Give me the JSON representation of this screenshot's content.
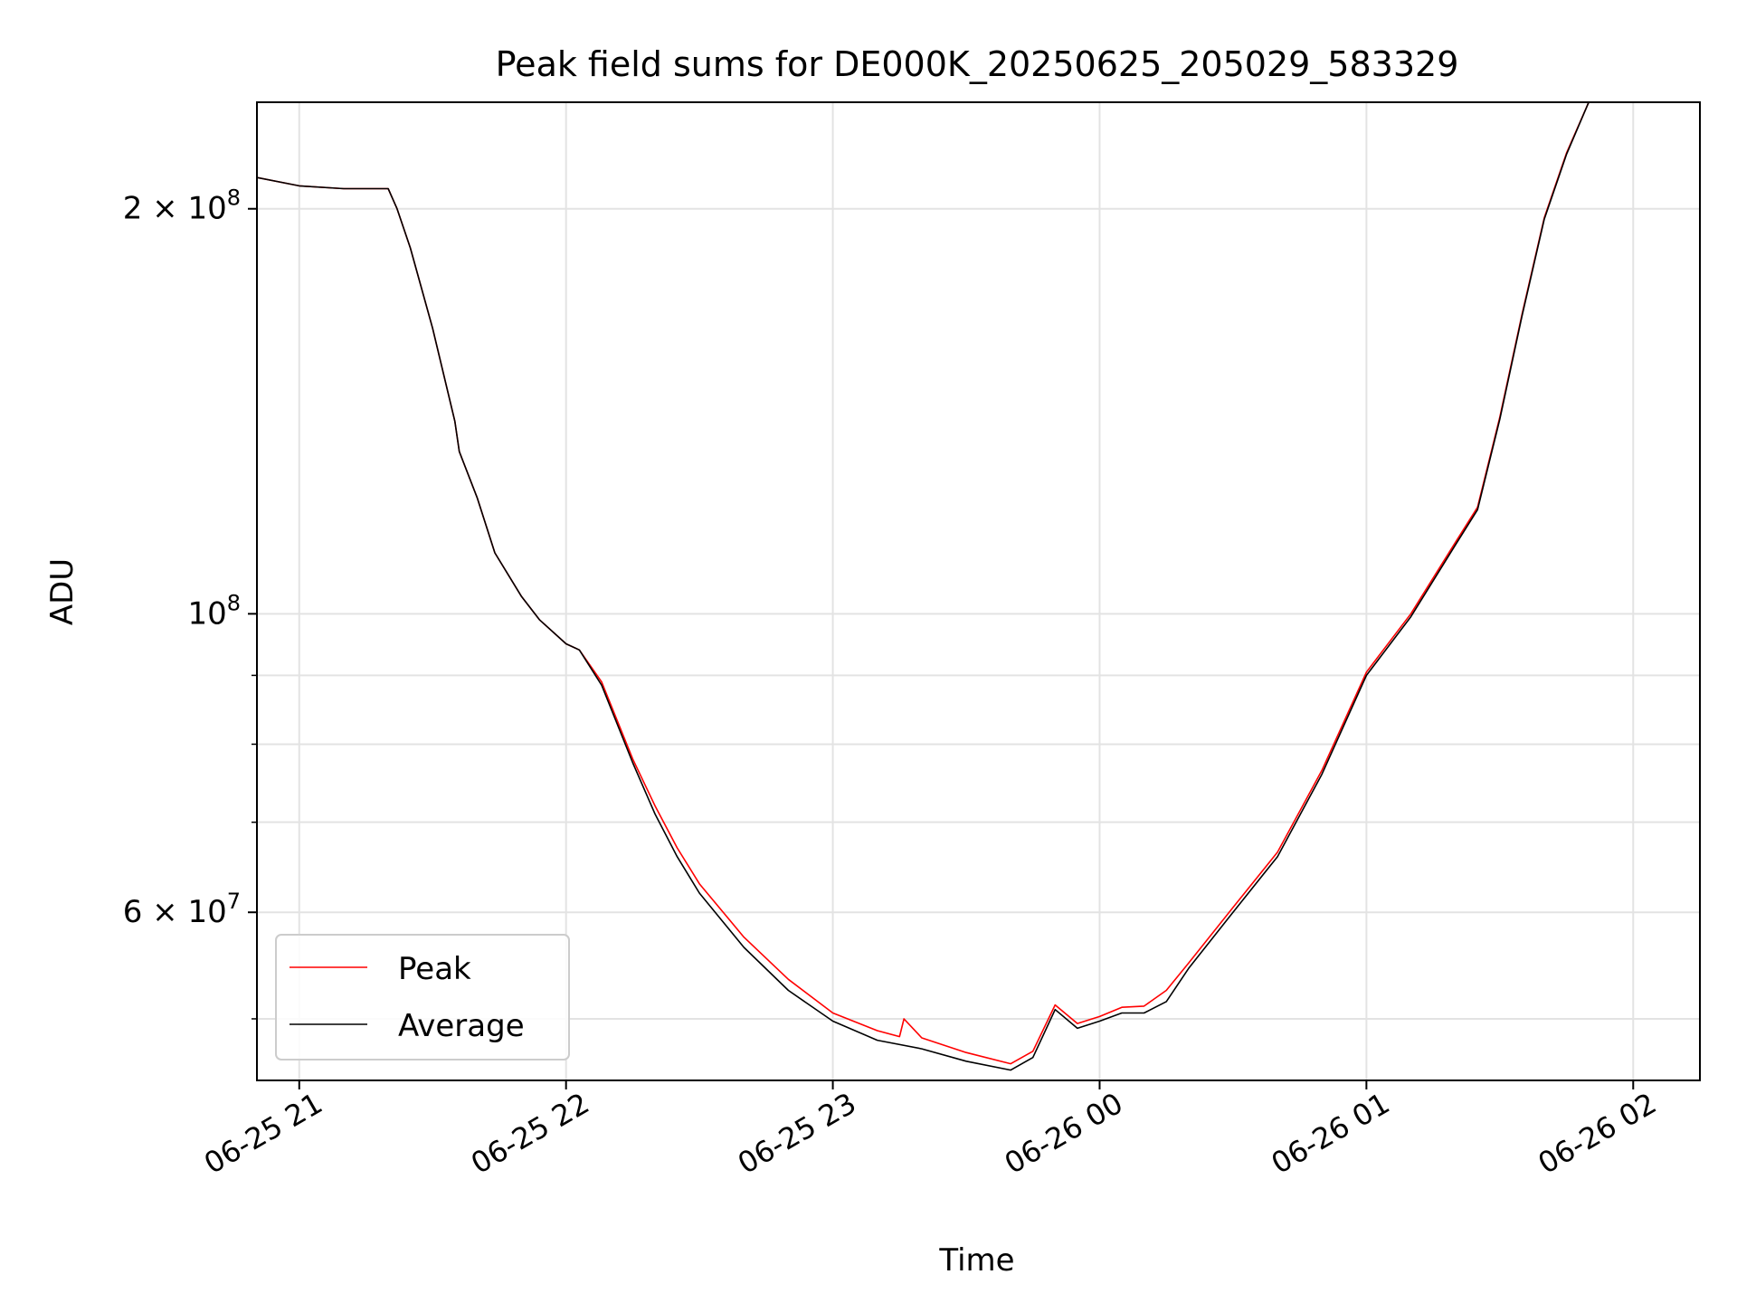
{
  "chart_data": {
    "type": "line",
    "title": "Peak field sums for DE000K_20250625_205029_583329",
    "xlabel": "Time",
    "ylabel": "ADU",
    "x_unit": "datetime",
    "xlim": [
      "2025-06-25 20:50:29",
      "2025-06-26 02:15:00"
    ],
    "ylim": [
      45000000,
      240000000
    ],
    "y_scale": "log",
    "grid": true,
    "legend_position": "lower-left",
    "x_ticks": [
      {
        "value": "2025-06-25 21:00",
        "label": "06-25 21"
      },
      {
        "value": "2025-06-25 22:00",
        "label": "06-25 22"
      },
      {
        "value": "2025-06-25 23:00",
        "label": "06-25 23"
      },
      {
        "value": "2025-06-26 00:00",
        "label": "06-26 00"
      },
      {
        "value": "2025-06-26 01:00",
        "label": "06-26 01"
      },
      {
        "value": "2025-06-26 02:00",
        "label": "06-26 02"
      }
    ],
    "y_ticks": [
      {
        "value": 200000000,
        "base": "2",
        "exp": "8"
      },
      {
        "value": 100000000,
        "base": "",
        "exp": "8"
      },
      {
        "value": 60000000,
        "base": "6",
        "exp": "7"
      }
    ],
    "y_minor_ticks": [
      50000000,
      70000000,
      80000000,
      90000000
    ],
    "series": [
      {
        "name": "Peak",
        "color": "#ff0000",
        "x": [
          "2025-06-25 20:50:29",
          "2025-06-25 21:00",
          "2025-06-25 21:10",
          "2025-06-25 21:20",
          "2025-06-25 21:22",
          "2025-06-25 21:25",
          "2025-06-25 21:30",
          "2025-06-25 21:35",
          "2025-06-25 21:36",
          "2025-06-25 21:40",
          "2025-06-25 21:44",
          "2025-06-25 21:50",
          "2025-06-25 21:54",
          "2025-06-25 22:00",
          "2025-06-25 22:03",
          "2025-06-25 22:08",
          "2025-06-25 22:15",
          "2025-06-25 22:20",
          "2025-06-25 22:25",
          "2025-06-25 22:30",
          "2025-06-25 22:40",
          "2025-06-25 22:50",
          "2025-06-25 23:00",
          "2025-06-25 23:10",
          "2025-06-25 23:15",
          "2025-06-25 23:16",
          "2025-06-25 23:20",
          "2025-06-25 23:30",
          "2025-06-25 23:40",
          "2025-06-25 23:45",
          "2025-06-25 23:50",
          "2025-06-25 23:55",
          "2025-06-26 00:00",
          "2025-06-26 00:05",
          "2025-06-26 00:10",
          "2025-06-26 00:15",
          "2025-06-26 00:20",
          "2025-06-26 00:30",
          "2025-06-26 00:40",
          "2025-06-26 00:50",
          "2025-06-26 01:00",
          "2025-06-26 01:10",
          "2025-06-26 01:20",
          "2025-06-26 01:25",
          "2025-06-26 01:30",
          "2025-06-26 01:35",
          "2025-06-26 01:40",
          "2025-06-26 01:45",
          "2025-06-26 01:50"
        ],
        "y": [
          211000000,
          208000000,
          207000000,
          207000000,
          200000000,
          187000000,
          163000000,
          139000000,
          132000000,
          122000000,
          111000000,
          103000000,
          99000000,
          95000000,
          94000000,
          89000000,
          78000000,
          72000000,
          67000000,
          63000000,
          57500000,
          53500000,
          50500000,
          49000000,
          48500000,
          50000000,
          48400000,
          47200000,
          46300000,
          47300000,
          51200000,
          49600000,
          50200000,
          51000000,
          51100000,
          52500000,
          55000000,
          60500000,
          66500000,
          76500000,
          90500000,
          100000000,
          113000000,
          120000000,
          140000000,
          167000000,
          197000000,
          220000000,
          240000000
        ]
      },
      {
        "name": "Average",
        "color": "#000000",
        "x": [
          "2025-06-25 20:50:29",
          "2025-06-25 21:00",
          "2025-06-25 21:10",
          "2025-06-25 21:20",
          "2025-06-25 21:22",
          "2025-06-25 21:25",
          "2025-06-25 21:30",
          "2025-06-25 21:35",
          "2025-06-25 21:36",
          "2025-06-25 21:40",
          "2025-06-25 21:44",
          "2025-06-25 21:50",
          "2025-06-25 21:54",
          "2025-06-25 22:00",
          "2025-06-25 22:03",
          "2025-06-25 22:08",
          "2025-06-25 22:15",
          "2025-06-25 22:20",
          "2025-06-25 22:25",
          "2025-06-25 22:30",
          "2025-06-25 22:40",
          "2025-06-25 22:50",
          "2025-06-25 23:00",
          "2025-06-25 23:10",
          "2025-06-25 23:20",
          "2025-06-25 23:30",
          "2025-06-25 23:40",
          "2025-06-25 23:45",
          "2025-06-25 23:50",
          "2025-06-25 23:55",
          "2025-06-26 00:00",
          "2025-06-26 00:05",
          "2025-06-26 00:10",
          "2025-06-26 00:15",
          "2025-06-26 00:20",
          "2025-06-26 00:30",
          "2025-06-26 00:40",
          "2025-06-26 00:50",
          "2025-06-26 01:00",
          "2025-06-26 01:10",
          "2025-06-26 01:20",
          "2025-06-26 01:25",
          "2025-06-26 01:30",
          "2025-06-26 01:35",
          "2025-06-26 01:40",
          "2025-06-26 01:45",
          "2025-06-26 01:50"
        ],
        "y": [
          211000000,
          208000000,
          207000000,
          207000000,
          200000000,
          187000000,
          163000000,
          139000000,
          132000000,
          122000000,
          111000000,
          103000000,
          99000000,
          95000000,
          94000000,
          88500000,
          77500000,
          71000000,
          66000000,
          62000000,
          56500000,
          52500000,
          49800000,
          48200000,
          47500000,
          46500000,
          45800000,
          46800000,
          50800000,
          49200000,
          49800000,
          50500000,
          50500000,
          51500000,
          54500000,
          60000000,
          66000000,
          76000000,
          90000000,
          99500000,
          112500000,
          119500000,
          139500000,
          166500000,
          196500000,
          219500000,
          240000000
        ]
      }
    ]
  }
}
